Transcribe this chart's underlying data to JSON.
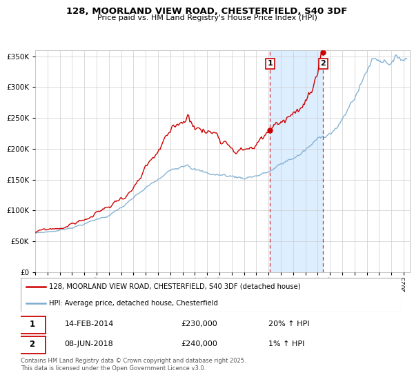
{
  "title": "128, MOORLAND VIEW ROAD, CHESTERFIELD, S40 3DF",
  "subtitle": "Price paid vs. HM Land Registry's House Price Index (HPI)",
  "legend_line1": "128, MOORLAND VIEW ROAD, CHESTERFIELD, S40 3DF (detached house)",
  "legend_line2": "HPI: Average price, detached house, Chesterfield",
  "footnote": "Contains HM Land Registry data © Crown copyright and database right 2025.\nThis data is licensed under the Open Government Licence v3.0.",
  "sale1_date": "14-FEB-2014",
  "sale1_price": "£230,000",
  "sale1_hpi": "20% ↑ HPI",
  "sale1_year": 2014.12,
  "sale1_value": 230000,
  "sale2_date": "08-JUN-2018",
  "sale2_price": "£240,000",
  "sale2_hpi": "1% ↑ HPI",
  "sale2_year": 2018.44,
  "sale2_value": 240000,
  "red_color": "#cc0000",
  "blue_color": "#7aabcf",
  "shade_color": "#ddeeff",
  "ylim_min": 0,
  "ylim_max": 360000,
  "xlim_min": 1995,
  "xlim_max": 2025.5
}
